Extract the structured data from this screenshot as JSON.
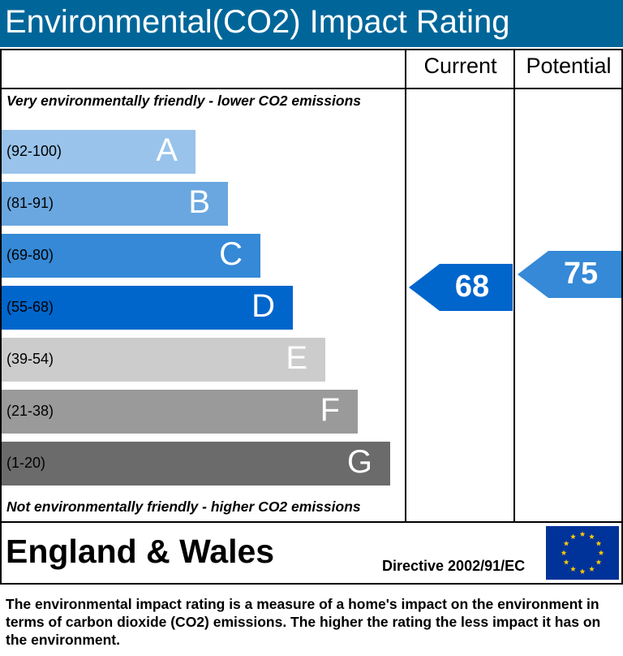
{
  "title": "Environmental(CO2) Impact Rating",
  "columns": {
    "current": "Current",
    "potential": "Potential"
  },
  "captions": {
    "top": "Very environmentally friendly - lower CO2 emissions",
    "bottom": "Not environmentally friendly - higher CO2 emissions"
  },
  "region": "England & Wales",
  "directive": "Directive 2002/91/EC",
  "footnote": "The environmental impact rating is a measure of a home's impact on the environment in terms of carbon dioxide (CO2) emissions. The higher the rating the less impact it has on the environment.",
  "chart_data": {
    "type": "bar",
    "title": "Environmental(CO2) Impact Rating",
    "bands": [
      {
        "letter": "A",
        "range": "(92-100)",
        "min": 92,
        "max": 100,
        "color": "#99c3eb"
      },
      {
        "letter": "B",
        "range": "(81-91)",
        "min": 81,
        "max": 91,
        "color": "#6aa7e0"
      },
      {
        "letter": "C",
        "range": "(69-80)",
        "min": 69,
        "max": 80,
        "color": "#3589d6"
      },
      {
        "letter": "D",
        "range": "(55-68)",
        "min": 55,
        "max": 68,
        "color": "#0066cc"
      },
      {
        "letter": "E",
        "range": "(39-54)",
        "min": 39,
        "max": 54,
        "color": "#cccccc"
      },
      {
        "letter": "F",
        "range": "(21-38)",
        "min": 21,
        "max": 38,
        "color": "#9a9a9a"
      },
      {
        "letter": "G",
        "range": "(1-20)",
        "min": 1,
        "max": 20,
        "color": "#6b6b6b"
      }
    ],
    "current": {
      "value": 68,
      "band": "D",
      "color": "#0066cc"
    },
    "potential": {
      "value": 75,
      "band": "C",
      "color": "#3589d6"
    }
  }
}
